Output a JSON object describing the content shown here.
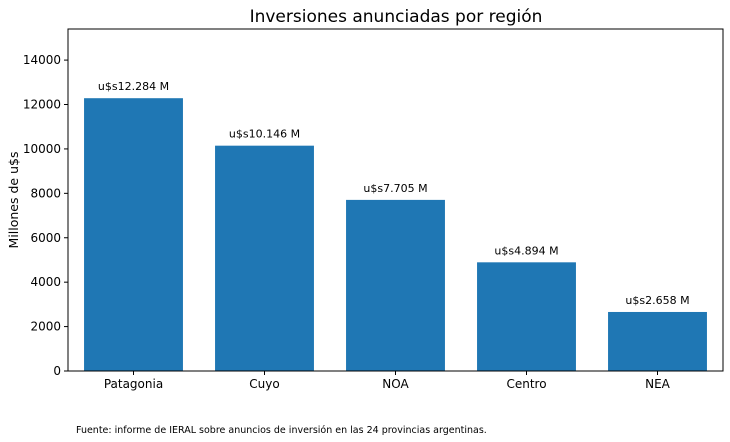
{
  "chart_data": {
    "type": "bar",
    "title": "Inversiones anunciadas por región",
    "xlabel": "",
    "ylabel": "Millones de u$s",
    "categories": [
      "Patagonia",
      "Cuyo",
      "NOA",
      "Centro",
      "NEA"
    ],
    "values": [
      12284,
      10146,
      7705,
      4894,
      2658
    ],
    "data_labels": [
      "u$s12.284 M",
      "u$s10.146 M",
      "u$s7.705 M",
      "u$s4.894 M",
      "u$s2.658 M"
    ],
    "ylim": [
      0,
      15400
    ],
    "yticks": [
      0,
      2000,
      4000,
      6000,
      8000,
      10000,
      12000,
      14000
    ],
    "bar_color": "#1f77b4",
    "grid": false,
    "legend": "none"
  },
  "footnote": "Fuente: informe de IERAL sobre anuncios de inversión en las 24 provincias argentinas."
}
